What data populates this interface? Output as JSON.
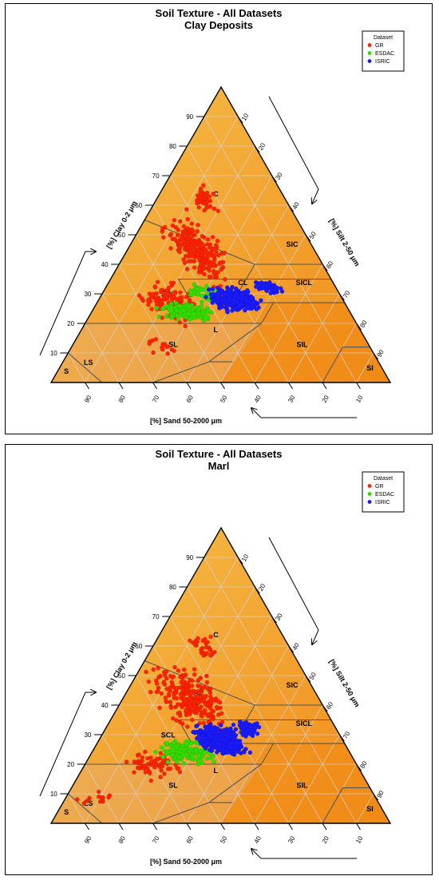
{
  "chart_data": [
    {
      "type": "scatter",
      "title": "Soil Texture - All Datasets",
      "subtitle": "Clay Deposits",
      "axes": {
        "clay": "[%] Clay 0-2 μm",
        "silt": "[%] Silt 2-50 μm",
        "sand": "[%] Sand 50-2000 μm"
      },
      "ticks": {
        "clay": [
          "10",
          "20",
          "30",
          "40",
          "50",
          "60",
          "70",
          "80",
          "90"
        ],
        "silt": [
          "10",
          "20",
          "30",
          "40",
          "50",
          "60",
          "70",
          "80",
          "90"
        ],
        "sand": [
          "90",
          "80",
          "70",
          "60",
          "50",
          "40",
          "30",
          "20",
          "10"
        ]
      },
      "classes": [
        "C",
        "SC",
        "SIC",
        "SICL",
        "CL",
        "SCL",
        "L",
        "SL",
        "LS",
        "S",
        "SIL",
        "SI"
      ],
      "legend": {
        "title": "Dataset",
        "position": "top-right",
        "entries": [
          "GR",
          "ESDAC",
          "ISRIC"
        ]
      },
      "series": [
        {
          "name": "GR",
          "color": "#ff2200",
          "clusters": [
            {
              "clay": 45,
              "sand": 35,
              "spread": [
                14,
                9
              ],
              "count": 240
            },
            {
              "clay": 27,
              "sand": 52,
              "spread": [
                9,
                11
              ],
              "count": 110
            },
            {
              "clay": 62,
              "sand": 24,
              "spread": [
                6,
                5
              ],
              "count": 40
            },
            {
              "clay": 12,
              "sand": 62,
              "spread": [
                4,
                6
              ],
              "count": 14
            }
          ]
        },
        {
          "name": "ESDAC",
          "color": "#33dd00",
          "clusters": [
            {
              "clay": 24,
              "sand": 48,
              "spread": [
                4,
                10
              ],
              "count": 150
            },
            {
              "clay": 30,
              "sand": 40,
              "spread": [
                4,
                6
              ],
              "count": 40
            }
          ]
        },
        {
          "name": "ISRIC",
          "color": "#1a1aff",
          "clusters": [
            {
              "clay": 28,
              "sand": 32,
              "spread": [
                5,
                9
              ],
              "count": 360
            },
            {
              "clay": 32,
              "sand": 20,
              "spread": [
                3,
                5
              ],
              "count": 50
            }
          ]
        }
      ]
    },
    {
      "type": "scatter",
      "title": "Soil Texture - All Datasets",
      "subtitle": "Marl",
      "axes": {
        "clay": "[%] Clay 0-2 μm",
        "silt": "[%] Silt 2-50 μm",
        "sand": "[%] Sand 50-2000 μm"
      },
      "ticks": {
        "clay": [
          "10",
          "20",
          "30",
          "40",
          "50",
          "60",
          "70",
          "80",
          "90"
        ],
        "silt": [
          "10",
          "20",
          "30",
          "40",
          "50",
          "60",
          "70",
          "80",
          "90"
        ],
        "sand": [
          "90",
          "80",
          "70",
          "60",
          "50",
          "40",
          "30",
          "20",
          "10"
        ]
      },
      "classes": [
        "C",
        "SC",
        "SIC",
        "SICL",
        "CL",
        "SCL",
        "L",
        "SL",
        "LS",
        "S",
        "SIL",
        "SI"
      ],
      "legend": {
        "title": "Dataset",
        "position": "top-right",
        "entries": [
          "GR",
          "ESDAC",
          "ISRIC"
        ]
      },
      "series": [
        {
          "name": "GR",
          "color": "#ff2200",
          "clusters": [
            {
              "clay": 42,
              "sand": 38,
              "spread": [
                14,
                12
              ],
              "count": 260
            },
            {
              "clay": 20,
              "sand": 60,
              "spread": [
                6,
                10
              ],
              "count": 60
            },
            {
              "clay": 8,
              "sand": 82,
              "spread": [
                4,
                7
              ],
              "count": 14
            },
            {
              "clay": 60,
              "sand": 25,
              "spread": [
                6,
                5
              ],
              "count": 30
            }
          ]
        },
        {
          "name": "ESDAC",
          "color": "#33dd00",
          "clusters": [
            {
              "clay": 24,
              "sand": 48,
              "spread": [
                5,
                10
              ],
              "count": 150
            }
          ]
        },
        {
          "name": "ISRIC",
          "color": "#1a1aff",
          "clusters": [
            {
              "clay": 28,
              "sand": 36,
              "spread": [
                6,
                8
              ],
              "count": 520
            },
            {
              "clay": 32,
              "sand": 26,
              "spread": [
                4,
                5
              ],
              "count": 60
            }
          ]
        }
      ]
    }
  ]
}
